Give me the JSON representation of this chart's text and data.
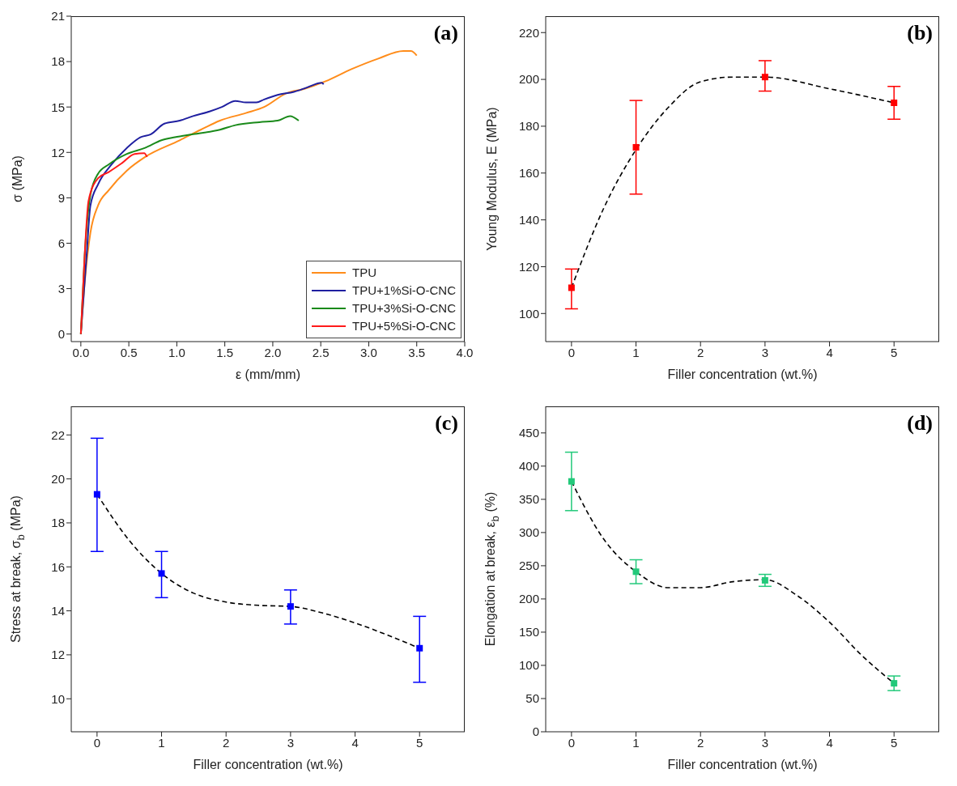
{
  "chart_data": [
    {
      "type": "line",
      "annotations": [
        "(a)"
      ],
      "xlabel": "ε (mm/mm)",
      "ylabel": "σ (MPa)",
      "xlim": [
        -0.1,
        4.0
      ],
      "ylim": [
        -0.5,
        21
      ],
      "xticks": [
        {
          "value": 0,
          "label": "0.0"
        },
        0.5,
        {
          "value": 1,
          "label": "1.0"
        },
        1.5,
        {
          "value": 2,
          "label": "2.0"
        },
        2.5,
        {
          "value": 3,
          "label": "3.0"
        },
        3.5,
        {
          "value": 4,
          "label": "4.0"
        }
      ],
      "yticks": [
        0,
        3,
        6,
        9,
        12,
        15,
        18,
        21
      ],
      "legend": "bottom right",
      "marker": "none",
      "grid": false,
      "series": [
        {
          "name": "TPU",
          "color": "#ff8c1a",
          "x": [
            0,
            0.04,
            0.1,
            0.18,
            0.29,
            0.48,
            0.67,
            1.03,
            1.25,
            1.45,
            1.72,
            1.91,
            2.14,
            2.33,
            2.55,
            2.82,
            3.1,
            3.36,
            3.44,
            3.5
          ],
          "values": [
            0,
            3.4,
            6.7,
            8.5,
            9.5,
            10.8,
            11.7,
            12.8,
            13.5,
            14.1,
            14.6,
            15.0,
            15.9,
            16.2,
            16.7,
            17.5,
            18.2,
            18.7,
            18.7,
            18.4
          ]
        },
        {
          "name": "TPU+1%Si-O-CNC",
          "color": "#1f1fa0",
          "x": [
            0,
            0.06,
            0.1,
            0.18,
            0.32,
            0.48,
            0.62,
            0.73,
            0.87,
            1.03,
            1.17,
            1.34,
            1.47,
            1.61,
            1.72,
            1.83,
            1.91,
            2.05,
            2.22,
            2.36,
            2.51,
            2.53
          ],
          "values": [
            0,
            5.2,
            8.5,
            9.9,
            11.2,
            12.3,
            13.0,
            13.2,
            13.9,
            14.1,
            14.4,
            14.7,
            15.0,
            15.4,
            15.3,
            15.3,
            15.5,
            15.8,
            16.0,
            16.3,
            16.6,
            16.5
          ]
        },
        {
          "name": "TPU+3%Si-O-CNC",
          "color": "#1a8a1a",
          "x": [
            0,
            0.04,
            0.1,
            0.18,
            0.29,
            0.48,
            0.67,
            0.84,
            0.98,
            1.17,
            1.45,
            1.61,
            1.86,
            2.05,
            2.18,
            2.27
          ],
          "values": [
            0,
            5.2,
            9.2,
            10.6,
            11.2,
            11.9,
            12.3,
            12.8,
            13.0,
            13.2,
            13.5,
            13.8,
            14.0,
            14.1,
            14.4,
            14.1
          ]
        },
        {
          "name": "TPU+5%Si-O-CNC",
          "color": "#ff1a1a",
          "x": [
            0,
            0.04,
            0.08,
            0.18,
            0.29,
            0.43,
            0.56,
            0.66,
            0.69
          ],
          "values": [
            0,
            5.2,
            8.8,
            10.3,
            10.7,
            11.3,
            11.9,
            11.95,
            11.7
          ]
        }
      ]
    },
    {
      "type": "scatter",
      "annotations": [
        "(b)"
      ],
      "xlabel": "Filler concentration (wt.%)",
      "ylabel": "Young Modulus, E (MPa)",
      "xlim": [
        -0.4,
        5.7
      ],
      "ylim": [
        88,
        227
      ],
      "xticks": [
        0,
        1,
        2,
        3,
        4,
        5
      ],
      "yticks": [
        100,
        120,
        140,
        160,
        180,
        200,
        220
      ],
      "marker": "square",
      "grid": false,
      "series": [
        {
          "color": "#ff0000",
          "x": [
            0,
            1,
            3,
            5
          ],
          "values": [
            111,
            171,
            201,
            190
          ],
          "errors": [
            [
              102,
              119
            ],
            [
              151,
              191
            ],
            [
              195,
              208
            ],
            [
              183,
              197
            ]
          ]
        },
        {
          "type": "line",
          "color": "#000000",
          "line_style": "dashed",
          "marker": "none",
          "x": [
            0,
            0.5,
            1,
            1.5,
            2,
            2.5,
            3,
            4,
            5
          ],
          "values": [
            111,
            145,
            170,
            188,
            199,
            201,
            201,
            196,
            190
          ]
        }
      ]
    },
    {
      "type": "scatter",
      "annotations": [
        "(c)"
      ],
      "xlabel": "Filler concentration (wt.%)",
      "ylabel": "Stress at break, σ$_{b}$ (MPa)",
      "xlim": [
        -0.4,
        5.7
      ],
      "ylim": [
        8.5,
        23.3
      ],
      "xticks": [
        0,
        1,
        2,
        3,
        4,
        5
      ],
      "yticks": [
        10,
        12,
        14,
        16,
        18,
        20,
        22
      ],
      "marker": "square",
      "grid": false,
      "series": [
        {
          "color": "#0000ff",
          "x": [
            0,
            1,
            3,
            5
          ],
          "values": [
            19.3,
            15.7,
            14.2,
            12.3
          ],
          "errors": [
            [
              16.7,
              21.85
            ],
            [
              14.6,
              16.7
            ],
            [
              13.4,
              14.95
            ],
            [
              10.75,
              13.75
            ]
          ]
        },
        {
          "type": "line",
          "color": "#000000",
          "line_style": "dashed",
          "marker": "none",
          "x": [
            0,
            0.5,
            1,
            1.5,
            2,
            2.5,
            3,
            3.5,
            4,
            4.5,
            5
          ],
          "values": [
            19.3,
            17.2,
            15.7,
            14.8,
            14.4,
            14.25,
            14.2,
            13.9,
            13.45,
            12.9,
            12.3
          ]
        }
      ]
    },
    {
      "type": "scatter",
      "annotations": [
        "(d)"
      ],
      "xlabel": "Filler concentration (wt.%)",
      "ylabel": "Elongation at break, ε$_{b}$ (%)",
      "xlim": [
        -0.4,
        5.7
      ],
      "ylim": [
        0,
        490
      ],
      "xticks": [
        0,
        1,
        2,
        3,
        4,
        5
      ],
      "yticks": [
        0,
        50,
        100,
        150,
        200,
        250,
        300,
        350,
        400,
        450
      ],
      "marker": "square",
      "grid": false,
      "series": [
        {
          "color": "#22c97a",
          "x": [
            0,
            1,
            3,
            5
          ],
          "values": [
            377,
            241,
            228,
            73
          ],
          "errors": [
            [
              333,
              421
            ],
            [
              223,
              259
            ],
            [
              219,
              237
            ],
            [
              62,
              84
            ]
          ]
        },
        {
          "type": "line",
          "color": "#000000",
          "line_style": "dashed",
          "marker": "none",
          "x": [
            0,
            0.5,
            1,
            1.5,
            2,
            2.5,
            3,
            3.5,
            4,
            4.5,
            5
          ],
          "values": [
            377,
            290,
            241,
            217,
            217,
            226,
            229,
            205,
            165,
            115,
            73
          ]
        }
      ]
    }
  ]
}
